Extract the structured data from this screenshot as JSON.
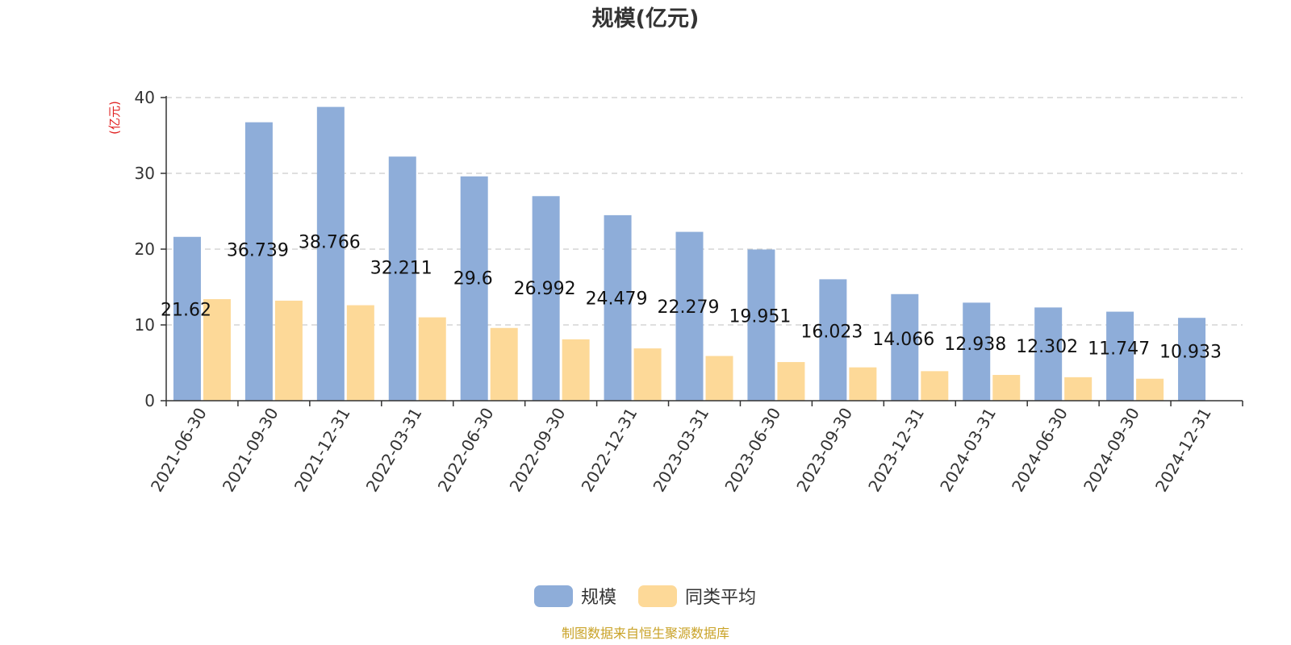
{
  "chart_data": {
    "type": "bar",
    "title": "规模(亿元)",
    "ylabel": "(亿元)",
    "xlabel": "",
    "ylim": [
      0,
      40
    ],
    "yticks": [
      0,
      10,
      20,
      30,
      40
    ],
    "grid": true,
    "legend_position": "bottom",
    "categories": [
      "2021-06-30",
      "2021-09-30",
      "2021-12-31",
      "2022-03-31",
      "2022-06-30",
      "2022-09-30",
      "2022-12-31",
      "2023-03-31",
      "2023-06-30",
      "2023-09-30",
      "2023-12-31",
      "2024-03-31",
      "2024-06-30",
      "2024-09-30",
      "2024-12-31"
    ],
    "series": [
      {
        "name": "规模",
        "color": "#8eadd9",
        "values": [
          21.62,
          36.739,
          38.766,
          32.211,
          29.6,
          26.992,
          24.479,
          22.279,
          19.951,
          16.023,
          14.066,
          12.938,
          12.302,
          11.747,
          10.933
        ],
        "labels": [
          "21.62",
          "36.739",
          "38.766",
          "32.211",
          "29.6",
          "26.992",
          "24.479",
          "22.279",
          "19.951",
          "16.023",
          "14.066",
          "12.938",
          "12.302",
          "11.747",
          "10.933"
        ]
      },
      {
        "name": "同类平均",
        "color": "#fdd998",
        "values": [
          13.4,
          13.2,
          12.6,
          11.0,
          9.6,
          8.1,
          6.9,
          5.9,
          5.1,
          4.4,
          3.9,
          3.4,
          3.1,
          2.9,
          null
        ]
      }
    ],
    "source": "制图数据来自恒生聚源数据库"
  }
}
